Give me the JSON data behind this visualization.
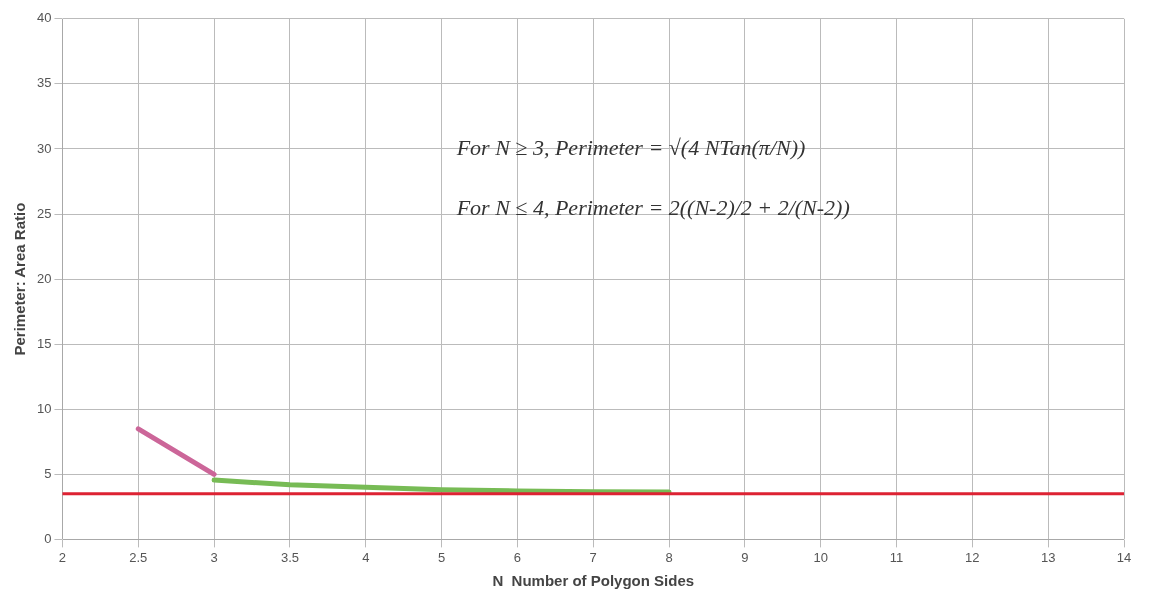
{
  "chart_data": {
    "type": "line",
    "xlabel": "N  Number of Polygon Sides",
    "ylabel": "Perimeter: Area Ratio",
    "categories": [
      "2",
      "2.5",
      "3",
      "3.5",
      "4",
      "5",
      "6",
      "7",
      "8",
      "9",
      "10",
      "11",
      "12",
      "13",
      "14"
    ],
    "series": [
      {
        "color": "#cc6699",
        "values": [
          null,
          8.5,
          5,
          null,
          null,
          null,
          null,
          null,
          null,
          null,
          null,
          null,
          null,
          null,
          null
        ]
      },
      {
        "color": "#77bb55",
        "values": [
          null,
          null,
          4.56,
          4.2,
          4.0,
          3.81,
          3.72,
          3.67,
          3.64,
          null,
          null,
          null,
          null,
          null,
          null
        ]
      }
    ],
    "ref_lines": [
      {
        "axis": "y",
        "value": 3.5,
        "color": "#dd2233"
      }
    ],
    "annotations": [
      "For N ≥ 3, Perimeter = √(4 NTan(π/N))",
      "For N ≤ 4, Perimeter = 2((N-2)/2 + 2/(N-2))"
    ],
    "ylim": [
      0,
      40
    ],
    "yticks": [
      0,
      5,
      10,
      15,
      20,
      25,
      30,
      35,
      40
    ],
    "grid": true,
    "legend": false,
    "marker": "none",
    "line_style": "solid"
  }
}
